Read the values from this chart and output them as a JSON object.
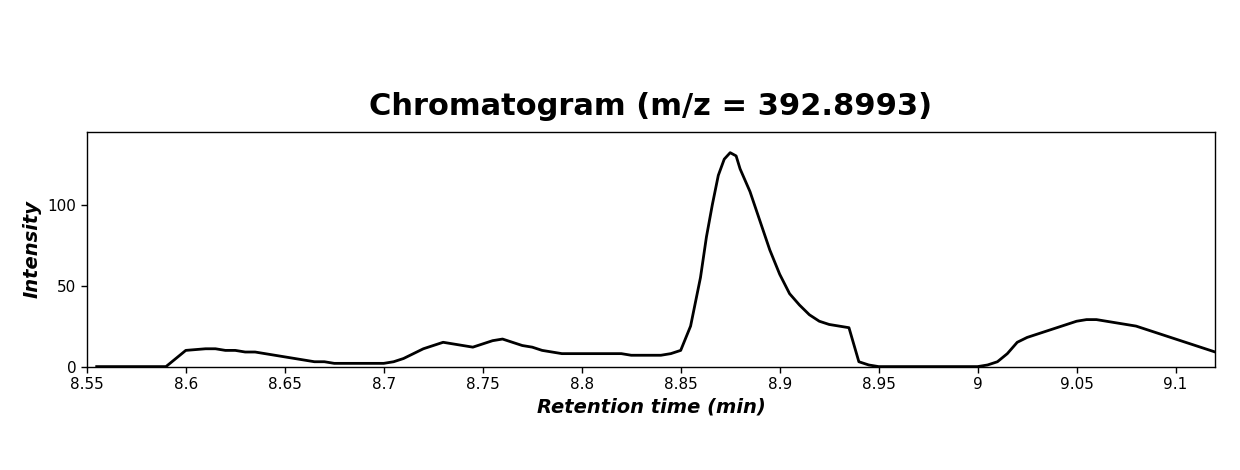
{
  "title": "Chromatogram (m/z = 392.8993)",
  "xlabel": "Retention time (min)",
  "ylabel": "Intensity",
  "ylim": [
    0,
    145
  ],
  "yticks": [
    0,
    50,
    100
  ],
  "xticks": [
    8.55,
    8.6,
    8.65,
    8.7,
    8.75,
    8.8,
    8.85,
    8.9,
    8.95,
    9.0,
    9.05,
    9.1
  ],
  "xtick_labels": [
    "8.55",
    "8.6",
    "8.65",
    "8.7",
    "8.75",
    "8.8",
    "8.85",
    "8.9",
    "8.95",
    "9",
    "9.05",
    "9.1"
  ],
  "line_color": "#000000",
  "line_width": 2.0,
  "background_color": "#ffffff",
  "title_fontsize": 22,
  "xlabel_fontsize": 14,
  "ylabel_fontsize": 14,
  "x": [
    8.555,
    8.57,
    8.58,
    8.59,
    8.6,
    8.61,
    8.615,
    8.62,
    8.625,
    8.63,
    8.635,
    8.64,
    8.645,
    8.65,
    8.655,
    8.66,
    8.665,
    8.67,
    8.675,
    8.68,
    8.685,
    8.69,
    8.695,
    8.7,
    8.705,
    8.71,
    8.715,
    8.72,
    8.725,
    8.73,
    8.735,
    8.74,
    8.745,
    8.75,
    8.755,
    8.76,
    8.765,
    8.77,
    8.775,
    8.78,
    8.785,
    8.79,
    8.795,
    8.8,
    8.805,
    8.81,
    8.815,
    8.82,
    8.825,
    8.83,
    8.835,
    8.84,
    8.845,
    8.85,
    8.855,
    8.86,
    8.863,
    8.866,
    8.869,
    8.872,
    8.875,
    8.878,
    8.88,
    8.885,
    8.89,
    8.895,
    8.9,
    8.905,
    8.91,
    8.915,
    8.92,
    8.925,
    8.93,
    8.935,
    8.94,
    8.945,
    8.95,
    8.955,
    8.96,
    8.965,
    8.97,
    8.975,
    8.98,
    8.985,
    8.99,
    8.995,
    9.0,
    9.005,
    9.01,
    9.015,
    9.02,
    9.025,
    9.03,
    9.035,
    9.04,
    9.045,
    9.05,
    9.055,
    9.06,
    9.065,
    9.07,
    9.075,
    9.08,
    9.085,
    9.09,
    9.095,
    9.1,
    9.105,
    9.11,
    9.115,
    9.12
  ],
  "y": [
    0,
    0,
    0,
    0,
    10,
    11,
    11,
    10,
    10,
    9,
    9,
    8,
    7,
    6,
    5,
    4,
    3,
    3,
    2,
    2,
    2,
    2,
    2,
    2,
    3,
    5,
    8,
    11,
    13,
    15,
    14,
    13,
    12,
    14,
    16,
    17,
    15,
    13,
    12,
    10,
    9,
    8,
    8,
    8,
    8,
    8,
    8,
    8,
    7,
    7,
    7,
    7,
    8,
    10,
    25,
    55,
    80,
    100,
    118,
    128,
    132,
    130,
    122,
    108,
    90,
    72,
    57,
    45,
    38,
    32,
    28,
    26,
    25,
    24,
    3,
    1,
    0,
    0,
    0,
    0,
    0,
    0,
    0,
    0,
    0,
    0,
    0,
    1,
    3,
    8,
    15,
    18,
    20,
    22,
    24,
    26,
    28,
    29,
    29,
    28,
    27,
    26,
    25,
    23,
    21,
    19,
    17,
    15,
    13,
    11,
    9
  ]
}
